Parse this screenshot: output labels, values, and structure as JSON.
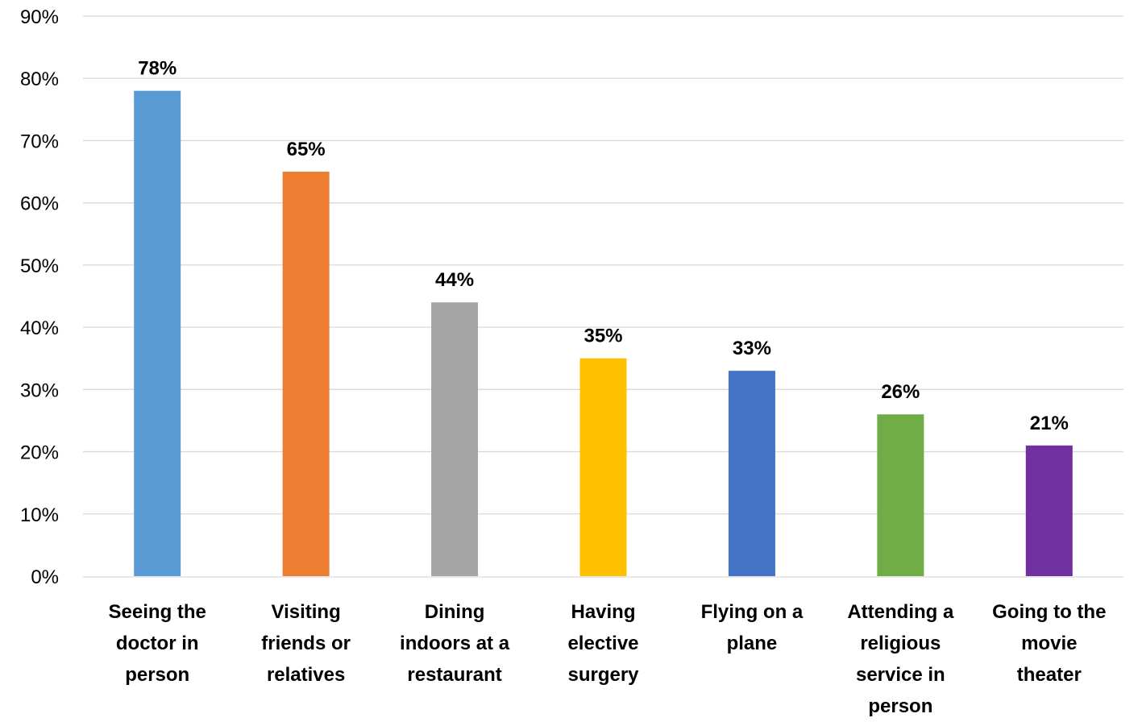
{
  "chart_data": {
    "type": "bar",
    "title": "",
    "xlabel": "",
    "ylabel": "",
    "ylim": [
      0,
      90
    ],
    "y_ticks": [
      0,
      10,
      20,
      30,
      40,
      50,
      60,
      70,
      80,
      90
    ],
    "y_tick_format": "percent",
    "grid": true,
    "legend": "none",
    "categories": [
      "Seeing the doctor in person",
      "Visiting friends or relatives",
      "Dining indoors at a restaurant",
      "Having elective surgery",
      "Flying on a plane",
      "Attending a religious service in person",
      "Going to the movie theater"
    ],
    "category_lines": [
      [
        "Seeing the",
        "doctor in",
        "person"
      ],
      [
        "Visiting",
        "friends or",
        "relatives"
      ],
      [
        "Dining",
        "indoors at a",
        "restaurant"
      ],
      [
        "Having",
        "elective",
        "surgery"
      ],
      [
        "Flying on a",
        "plane"
      ],
      [
        "Attending a",
        "religious",
        "service in",
        "person"
      ],
      [
        "Going to the",
        "movie",
        "theater"
      ]
    ],
    "values": [
      78,
      65,
      44,
      35,
      33,
      26,
      21
    ],
    "data_labels": [
      "78%",
      "65%",
      "44%",
      "35%",
      "33%",
      "26%",
      "21%"
    ],
    "colors": [
      "#5B9BD5",
      "#ED7D31",
      "#A5A5A5",
      "#FFC000",
      "#4472C4",
      "#70AD47",
      "#7030A0"
    ]
  }
}
